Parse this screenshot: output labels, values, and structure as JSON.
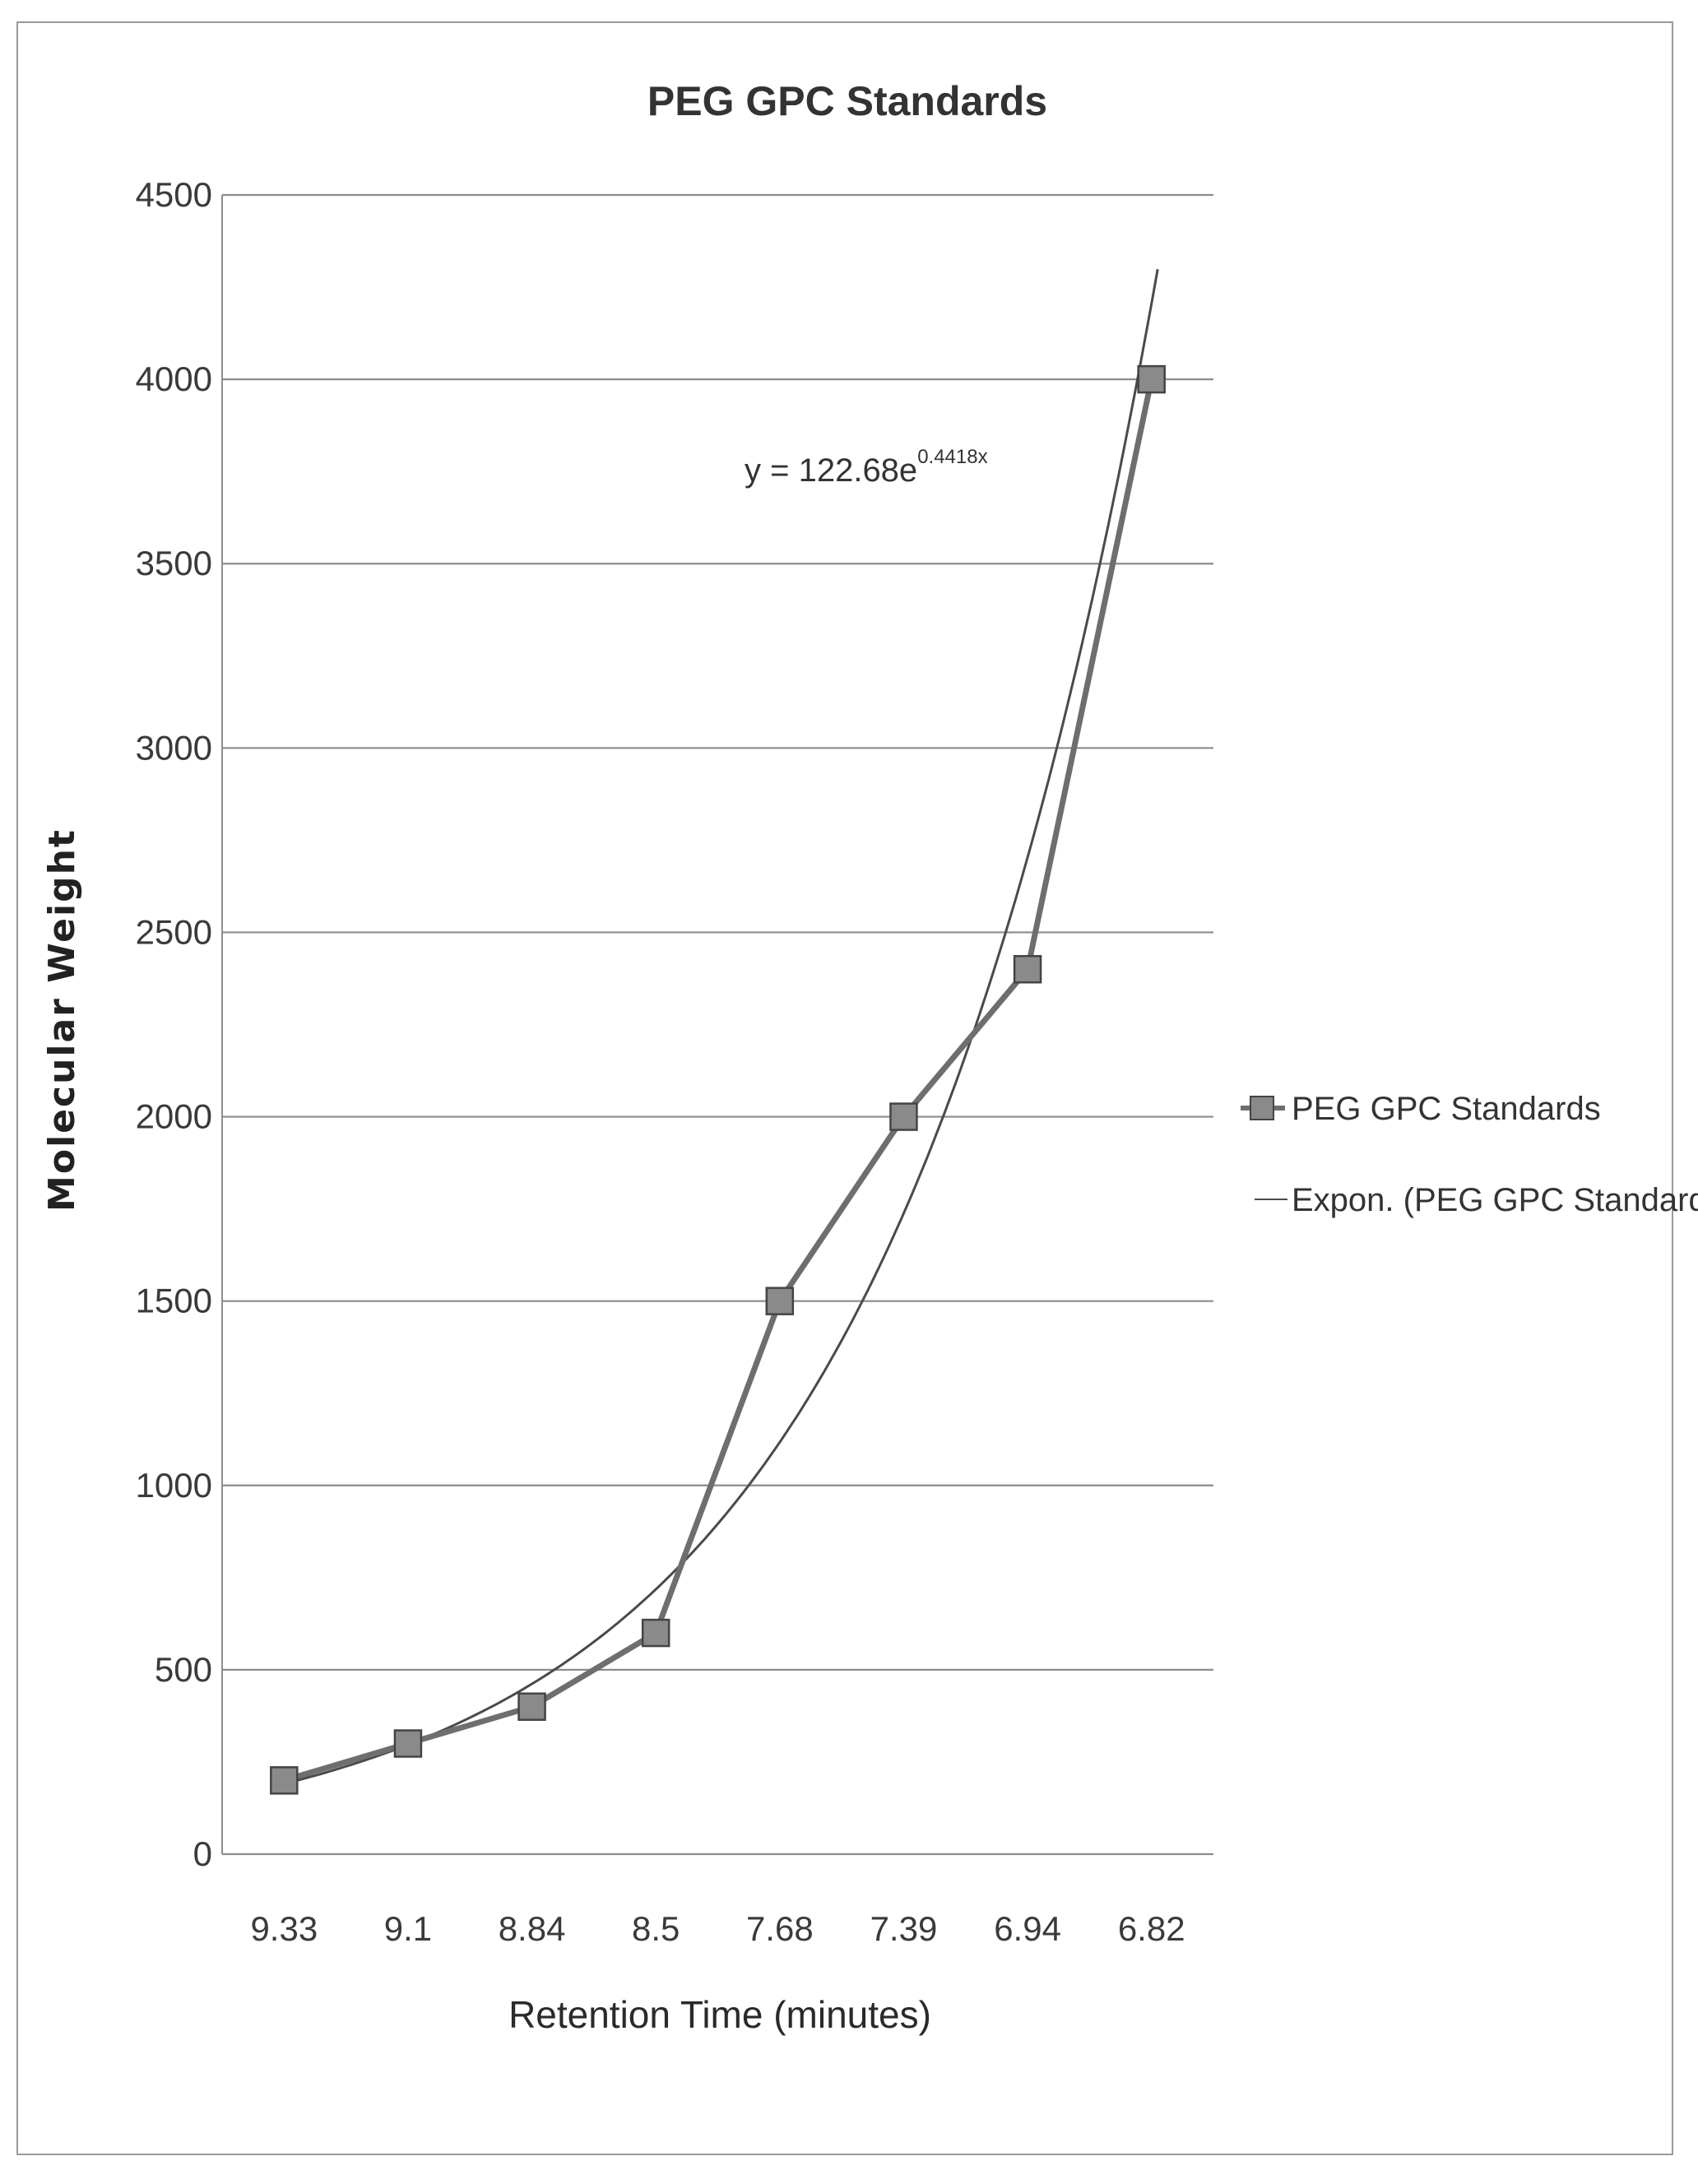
{
  "chart_data": {
    "type": "line",
    "title": "PEG GPC Standards",
    "xlabel": "Retention Time (minutes)",
    "ylabel": "Molecular Weight",
    "categories": [
      "9.33",
      "9.1",
      "8.84",
      "8.5",
      "7.68",
      "7.39",
      "6.94",
      "6.82"
    ],
    "ylim": [
      0,
      4500
    ],
    "yticks": [
      0,
      500,
      1000,
      1500,
      2000,
      2500,
      3000,
      3500,
      4000,
      4500
    ],
    "grid": true,
    "legend_position": "right",
    "series": [
      {
        "name": "PEG GPC Standards",
        "values": [
          200,
          300,
          400,
          600,
          1500,
          2000,
          2400,
          4000
        ],
        "marker": "square",
        "color": "#6e6e6e"
      },
      {
        "name": "Expon. (PEG GPC Standards)",
        "trendline": "exponential",
        "coefficient": 122.68,
        "exponent": 0.4418,
        "color": "#4a4a4a"
      }
    ],
    "equation": {
      "prefix": "y = 122.68e",
      "superscript": "0.4418x"
    }
  }
}
